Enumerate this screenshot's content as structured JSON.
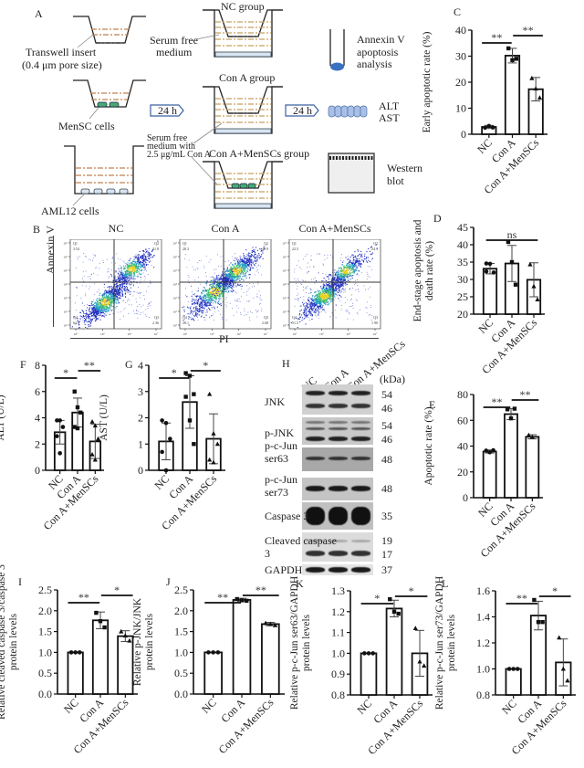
{
  "panels": {
    "A": {
      "label": "A",
      "insert_label_1": "Transwell insert",
      "insert_label_2": "(0.4 μm pore size)",
      "mensc_label": "MenSC cells",
      "aml_label": "AML12 cells",
      "step1": "24 h",
      "step2": "24 h",
      "nc_group": "NC group",
      "cona_group": "Con A group",
      "combo_group": "Con A+MenSCs group",
      "serum_free_1": "Serum free",
      "serum_free_2": "medium",
      "cona_medium_1": "Serum free",
      "cona_medium_2": "medium with",
      "cona_medium_3": "2.5 μg/mL Con A",
      "annexin_1": "Annexin V",
      "annexin_2": "apoptosis",
      "annexin_3": "analysis",
      "alt": "ALT",
      "ast": "AST",
      "western_1": "Western",
      "western_2": "blot",
      "colors": {
        "medium": "#c8a060",
        "insert_medium": "#c08050",
        "mensc": "#4aa870",
        "aml": "#6080a0",
        "tube": "#3a70c0",
        "plate": "#a8c0e8"
      }
    },
    "B": {
      "label": "B",
      "x_label": "PI",
      "y_label": "Annexin V",
      "plots": [
        {
          "title": "NC",
          "q1": "3.54",
          "q2": "31.8",
          "q3": "2.36",
          "q4": "62.3"
        },
        {
          "title": "Con A",
          "q1": "28.3",
          "q2": "40.9",
          "q3": "2.68",
          "q4": "28.1"
        },
        {
          "title": "Con A+MenSCs",
          "q1": "22.5",
          "q2": "24.1",
          "q3": "1.90",
          "q4": "51.5"
        }
      ],
      "q_names": [
        "Q1",
        "Q2",
        "Q3",
        "Q4"
      ],
      "tick_labels": [
        "10¹",
        "10²",
        "10³",
        "10⁴",
        "10⁵",
        "10⁶",
        "10⁷"
      ]
    },
    "H": {
      "label": "H",
      "lanes": [
        "NC",
        "Con A",
        "Con A+MenSCs"
      ],
      "kda_header": "(kDa)",
      "rows": [
        {
          "name": "JNK",
          "kda": [
            "54",
            "46"
          ]
        },
        {
          "name": "p-JNK",
          "kda": [
            "54",
            "46"
          ]
        },
        {
          "name": "p-c-Jun ser63",
          "kda": [
            "48"
          ]
        },
        {
          "name": "p-c-Jun ser73",
          "kda": [
            "48"
          ]
        },
        {
          "name": "Caspase 3",
          "kda": [
            "35"
          ]
        },
        {
          "name": "Cleaved caspase 3",
          "kda": [
            "19",
            "17"
          ]
        },
        {
          "name": "GAPDH",
          "kda": [
            "37"
          ]
        }
      ]
    }
  },
  "chart_data": [
    {
      "id": "C",
      "type": "bar",
      "title": "",
      "ylabel": "Early apoptotic rate (%)",
      "categories": [
        "NC",
        "Con A",
        "Con A+MenSCs"
      ],
      "values": [
        2.8,
        30.2,
        17.3
      ],
      "errors": [
        0.6,
        2.8,
        4.5
      ],
      "points": [
        [
          2.5,
          3.2,
          2.6
        ],
        [
          33.0,
          28.5,
          29.0
        ],
        [
          21.5,
          17.5,
          14.0
        ]
      ],
      "markers": [
        "circle",
        "square",
        "triangle"
      ],
      "ylim": [
        0,
        40
      ],
      "yticks": [
        "0",
        "10",
        "20",
        "30",
        "40"
      ],
      "sig": [
        {
          "from": 0,
          "to": 1,
          "label": "**"
        },
        {
          "from": 1,
          "to": 2,
          "label": "**"
        }
      ]
    },
    {
      "id": "D",
      "type": "bar",
      "title": "",
      "ylabel": "End-stage apoptosis and death rate (%)",
      "categories": [
        "NC",
        "Con A",
        "Con A+MenSCs"
      ],
      "values": [
        33.1,
        34.6,
        29.9
      ],
      "errors": [
        1.5,
        5.2,
        4.9
      ],
      "points": [
        [
          34.6,
          34.5,
          32.0,
          32.3
        ],
        [
          40.8,
          35.0,
          28.5
        ],
        [
          34.3,
          28.0,
          24.2
        ]
      ],
      "markers": [
        "circle",
        "square",
        "triangle"
      ],
      "ylim": [
        20,
        45
      ],
      "yticks": [
        "20",
        "25",
        "30",
        "35",
        "40",
        "45"
      ],
      "sig": [
        {
          "from": 0,
          "to": 2,
          "label": "ns"
        }
      ]
    },
    {
      "id": "E",
      "type": "bar",
      "title": "",
      "ylabel": "Apoptotic rate (%)",
      "categories": [
        "NC",
        "Con A",
        "Con A+MenSCs"
      ],
      "values": [
        35.8,
        64.8,
        47.2
      ],
      "errors": [
        1.2,
        4.2,
        1.6
      ],
      "points": [
        [
          36.5,
          35.2,
          36.8
        ],
        [
          68.5,
          61.5,
          69.0
        ],
        [
          48.5,
          47.0
        ]
      ],
      "markers": [
        "circle",
        "square",
        "triangle"
      ],
      "ylim": [
        0,
        80
      ],
      "yticks": [
        "0",
        "20",
        "40",
        "60",
        "80"
      ],
      "sig": [
        {
          "from": 0,
          "to": 1,
          "label": "**"
        },
        {
          "from": 1,
          "to": 2,
          "label": "**"
        }
      ]
    },
    {
      "id": "F",
      "type": "bar",
      "title": "",
      "ylabel": "ALT (U/L)",
      "categories": [
        "NC",
        "Con A",
        "Con A+MenSCs"
      ],
      "values": [
        2.9,
        4.4,
        2.2
      ],
      "errors": [
        0.9,
        1.1,
        1.3
      ],
      "points": [
        [
          3.8,
          3.8,
          3.3,
          2.6,
          1.3
        ],
        [
          6.0,
          4.8,
          4.4,
          3.3,
          3.2
        ],
        [
          3.7,
          3.4,
          2.4,
          1.2,
          0.8
        ]
      ],
      "markers": [
        "circle",
        "square",
        "triangle"
      ],
      "ylim": [
        0,
        8
      ],
      "yticks": [
        "0",
        "2",
        "4",
        "6",
        "8"
      ],
      "sig": [
        {
          "from": 0,
          "to": 1,
          "label": "*"
        },
        {
          "from": 1,
          "to": 2,
          "label": "**"
        }
      ]
    },
    {
      "id": "G",
      "type": "bar",
      "title": "",
      "ylabel": "AST (U/L)",
      "categories": [
        "NC",
        "Con A",
        "Con A+MenSCs"
      ],
      "values": [
        1.1,
        2.6,
        1.2
      ],
      "errors": [
        0.7,
        1.0,
        0.95
      ],
      "points": [
        [
          1.9,
          1.8,
          1.2,
          0.7,
          0.0
        ],
        [
          3.7,
          3.6,
          2.9,
          2.8,
          1.9,
          1.0
        ],
        [
          2.9,
          1.4,
          1.0,
          0.4,
          0.3
        ]
      ],
      "markers": [
        "circle",
        "square",
        "triangle"
      ],
      "ylim": [
        0,
        4
      ],
      "yticks": [
        "0",
        "1",
        "2",
        "3",
        "4"
      ],
      "sig": [
        {
          "from": 0,
          "to": 1,
          "label": "*"
        },
        {
          "from": 1,
          "to": 2,
          "label": "*"
        }
      ]
    },
    {
      "id": "I",
      "type": "bar",
      "title": "",
      "ylabel": "Relative cleaved caspase 3/caspase 3 protein levels",
      "categories": [
        "NC",
        "Con A",
        "Con A+MenSCs"
      ],
      "values": [
        1.0,
        1.77,
        1.39
      ],
      "errors": [
        0.0,
        0.2,
        0.13
      ],
      "points": [
        [
          1.0,
          1.0,
          1.0
        ],
        [
          1.95,
          1.75,
          1.6
        ],
        [
          1.5,
          1.4,
          1.28
        ]
      ],
      "markers": [
        "circle",
        "square",
        "triangle"
      ],
      "ylim": [
        0,
        2.5
      ],
      "yticks": [
        "0.0",
        "0.5",
        "1.0",
        "1.5",
        "2.0",
        "2.5"
      ],
      "sig": [
        {
          "from": 0,
          "to": 1,
          "label": "**"
        },
        {
          "from": 1,
          "to": 2,
          "label": "*"
        }
      ]
    },
    {
      "id": "J",
      "type": "bar",
      "title": "",
      "ylabel": "Relative p-JNK/JNK protein levels",
      "categories": [
        "NC",
        "Con A",
        "Con A+MenSCs"
      ],
      "values": [
        1.0,
        2.26,
        1.68
      ],
      "errors": [
        0.0,
        0.04,
        0.04
      ],
      "points": [
        [
          1.0,
          1.0,
          1.0
        ],
        [
          2.28,
          2.25,
          2.24
        ],
        [
          1.7,
          1.68,
          1.65
        ]
      ],
      "markers": [
        "circle",
        "square",
        "triangle"
      ],
      "ylim": [
        0,
        2.5
      ],
      "yticks": [
        "0.0",
        "0.5",
        "1.0",
        "1.5",
        "2.0",
        "2.5"
      ],
      "sig": [
        {
          "from": 0,
          "to": 1,
          "label": "**"
        },
        {
          "from": 1,
          "to": 2,
          "label": "**"
        }
      ]
    },
    {
      "id": "K",
      "type": "bar",
      "title": "",
      "ylabel": "Relative p-c-Jun ser63/GAPDH protein levels",
      "categories": [
        "NC",
        "Con A",
        "Con A+MenSCs"
      ],
      "values": [
        1.0,
        1.215,
        1.0
      ],
      "errors": [
        0.0,
        0.04,
        0.11
      ],
      "points": [
        [
          1.0,
          1.0,
          1.0
        ],
        [
          1.26,
          1.2,
          1.19
        ],
        [
          1.12,
          0.96,
          0.94
        ]
      ],
      "markers": [
        "circle",
        "square",
        "triangle"
      ],
      "ylim": [
        0.8,
        1.3
      ],
      "yticks": [
        "0.8",
        "0.9",
        "1.0",
        "1.1",
        "1.2",
        "1.3"
      ],
      "sig": [
        {
          "from": 0,
          "to": 1,
          "label": "*"
        },
        {
          "from": 1,
          "to": 2,
          "label": "*"
        }
      ]
    },
    {
      "id": "L",
      "type": "bar",
      "title": "",
      "ylabel": "Relative p-c-Jun ser73/GAPDH protein levels",
      "categories": [
        "NC",
        "Con A",
        "Con A+MenSCs"
      ],
      "values": [
        1.0,
        1.41,
        1.05
      ],
      "errors": [
        0.0,
        0.11,
        0.18
      ],
      "points": [
        [
          1.0,
          1.0,
          1.0
        ],
        [
          1.53,
          1.36,
          1.36
        ],
        [
          1.24,
          1.0,
          0.91
        ]
      ],
      "markers": [
        "circle",
        "square",
        "triangle"
      ],
      "ylim": [
        0.8,
        1.6
      ],
      "yticks": [
        "0.8",
        "1.0",
        "1.2",
        "1.4",
        "1.6"
      ],
      "sig": [
        {
          "from": 0,
          "to": 1,
          "label": "**"
        },
        {
          "from": 1,
          "to": 2,
          "label": "*"
        }
      ]
    }
  ]
}
